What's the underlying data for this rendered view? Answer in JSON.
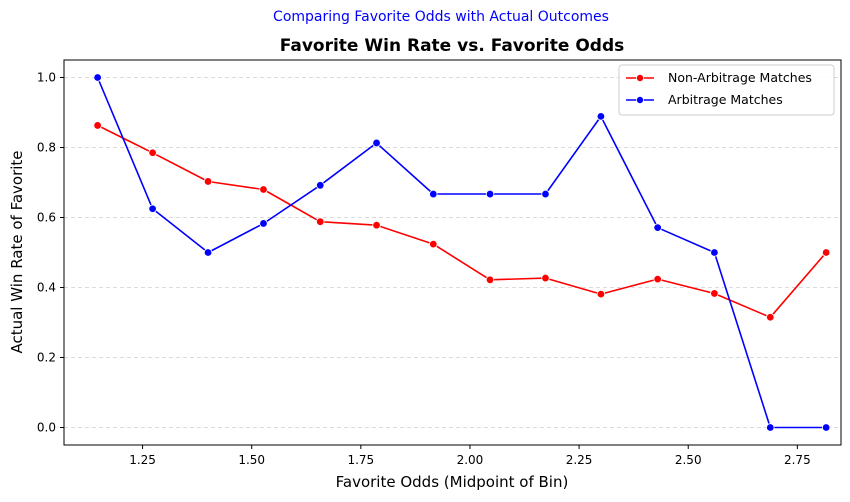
{
  "chart_data": {
    "type": "line",
    "suptitle": "Comparing Favorite Odds with Actual Outcomes",
    "title": "Favorite Win Rate vs. Favorite Odds",
    "xlabel": "Favorite Odds (Midpoint of Bin)",
    "ylabel": "Actual Win Rate of Favorite",
    "xlim": [
      1.07,
      2.85
    ],
    "ylim": [
      -0.05,
      1.05
    ],
    "x_ticks": [
      "1.25",
      "1.50",
      "1.75",
      "2.00",
      "2.25",
      "2.50",
      "2.75"
    ],
    "x_tick_values": [
      1.25,
      1.5,
      1.75,
      2.0,
      2.25,
      2.5,
      2.75
    ],
    "y_ticks": [
      "0.0",
      "0.2",
      "0.4",
      "0.6",
      "0.8",
      "1.0"
    ],
    "y_tick_values": [
      0.0,
      0.2,
      0.4,
      0.6,
      0.8,
      1.0
    ],
    "grid": "y-dashed",
    "legend_position": "top-right",
    "x": [
      1.147,
      1.273,
      1.4,
      1.527,
      1.657,
      1.786,
      1.916,
      2.046,
      2.173,
      2.3,
      2.43,
      2.56,
      2.688,
      2.816
    ],
    "series": [
      {
        "name": "Non-Arbitrage Matches",
        "color": "#ff0000",
        "values": [
          0.863,
          0.785,
          0.703,
          0.68,
          0.588,
          0.578,
          0.524,
          0.422,
          0.427,
          0.381,
          0.424,
          0.383,
          0.315,
          0.5
        ]
      },
      {
        "name": "Arbitrage Matches",
        "color": "#0000ff",
        "values": [
          1.0,
          0.625,
          0.5,
          0.583,
          0.692,
          0.813,
          0.667,
          0.667,
          0.667,
          0.889,
          0.571,
          0.5,
          0.0,
          0.0
        ]
      }
    ]
  }
}
